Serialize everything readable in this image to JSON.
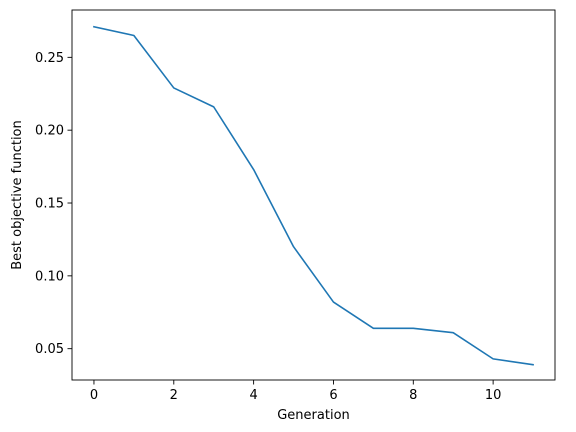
{
  "chart_data": {
    "type": "line",
    "xlabel": "Generation",
    "ylabel": "Best objective function",
    "xlim": [
      -0.55,
      11.55
    ],
    "ylim": [
      0.0285,
      0.2825
    ],
    "xticks": [
      0,
      2,
      4,
      6,
      8,
      10
    ],
    "xtick_labels": [
      "0",
      "2",
      "4",
      "6",
      "8",
      "10"
    ],
    "yticks": [
      0.05,
      0.1,
      0.15,
      0.2,
      0.25
    ],
    "ytick_labels": [
      "0.05",
      "0.10",
      "0.15",
      "0.20",
      "0.25"
    ],
    "grid": false,
    "legend": "none",
    "series": [
      {
        "color": "#1f77b4",
        "x": [
          0,
          1,
          2,
          3,
          4,
          5,
          6,
          7,
          8,
          9,
          10,
          11
        ],
        "y": [
          0.271,
          0.265,
          0.229,
          0.216,
          0.173,
          0.12,
          0.082,
          0.064,
          0.064,
          0.061,
          0.043,
          0.039
        ]
      }
    ]
  }
}
